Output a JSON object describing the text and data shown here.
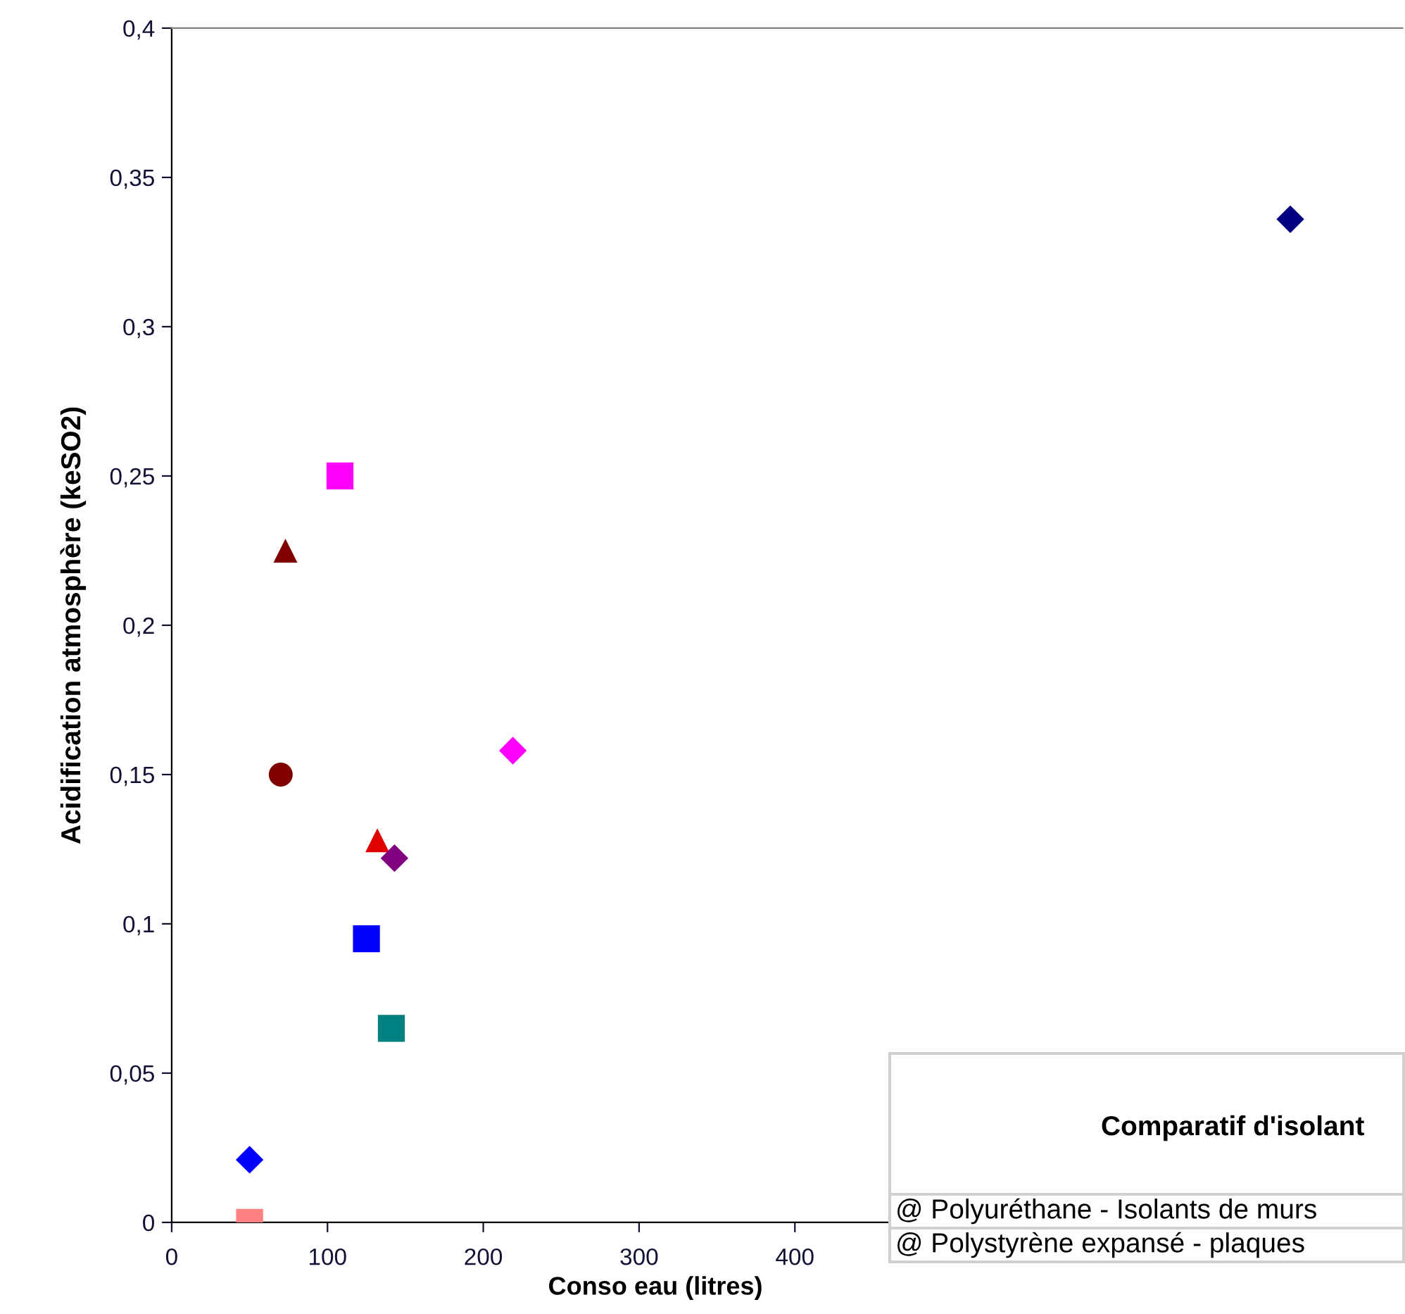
{
  "chart_data": {
    "type": "scatter",
    "xlabel": "Conso eau (litres)",
    "ylabel": "Acidification atmosphère (keSO2)",
    "xlim": [
      0,
      790
    ],
    "xticks": [
      0,
      100,
      200,
      300,
      400
    ],
    "ylim": [
      0,
      0.4
    ],
    "yticks": [
      0,
      {
        "value": 0.05,
        "label": "0,05"
      },
      {
        "value": 0.1,
        "label": "0,1"
      },
      {
        "value": 0.15,
        "label": "0,15"
      },
      {
        "value": 0.2,
        "label": "0,2"
      },
      {
        "value": 0.25,
        "label": "0,25"
      },
      {
        "value": 0.3,
        "label": "0,3"
      },
      {
        "value": 0.35,
        "label": "0,35"
      },
      {
        "value": 0.4,
        "label": "0,4"
      }
    ],
    "grid": false,
    "legend": false,
    "series": [
      {
        "color": "#000080",
        "marker": "diamond",
        "x": [
          718
        ],
        "values": [
          0.336
        ]
      },
      {
        "color": "#ff00ff",
        "marker": "square",
        "x": [
          108
        ],
        "values": [
          0.25
        ]
      },
      {
        "color": "#800000",
        "marker": "triangle",
        "x": [
          73
        ],
        "values": [
          0.225
        ]
      },
      {
        "color": "#800000",
        "marker": "circle",
        "x": [
          70
        ],
        "values": [
          0.15
        ]
      },
      {
        "color": "#ff00ff",
        "marker": "diamond",
        "x": [
          219
        ],
        "values": [
          0.158
        ]
      },
      {
        "color": "#e00000",
        "marker": "triangle",
        "x": [
          132
        ],
        "values": [
          0.128
        ]
      },
      {
        "color": "#800080",
        "marker": "diamond",
        "x": [
          143
        ],
        "values": [
          0.122
        ]
      },
      {
        "color": "#0000ff",
        "marker": "square",
        "x": [
          125
        ],
        "values": [
          0.095
        ]
      },
      {
        "color": "#008080",
        "marker": "square",
        "x": [
          141
        ],
        "values": [
          0.065
        ]
      },
      {
        "color": "#0000ff",
        "marker": "diamond",
        "x": [
          50
        ],
        "values": [
          0.021
        ]
      },
      {
        "color": "#ff8080",
        "marker": "square",
        "x": [
          50
        ],
        "values": [
          0
        ]
      }
    ],
    "annotations": [
      "Comparatif d'isolant",
      "@ Polyuréthane - Isolants de murs",
      "@ Polystyrène expansé - plaques"
    ]
  }
}
